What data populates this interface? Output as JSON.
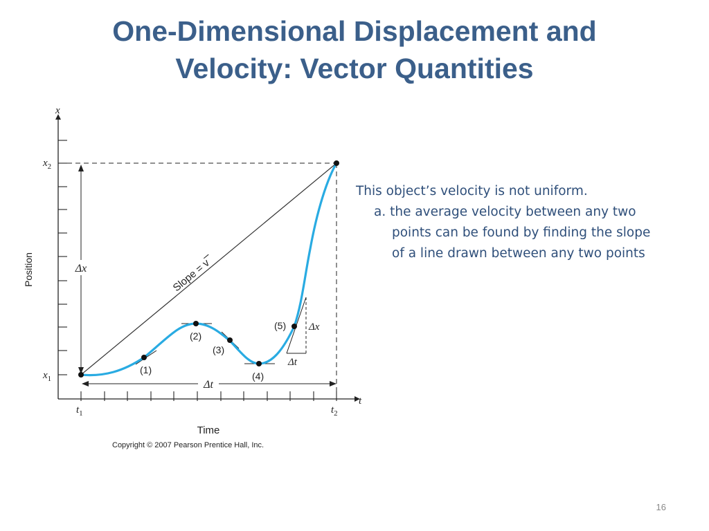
{
  "slide": {
    "title_line1": "One-Dimensional Displacement and",
    "title_line2": "Velocity: Vector Quantities",
    "page_number": "16"
  },
  "notes": {
    "line1": "This object’s velocity is not uniform.",
    "line2": "a. the average velocity between any two",
    "line3": "points can be found by finding the slope",
    "line4": "of a line drawn between any two points"
  },
  "figure": {
    "y_axis_var": "x",
    "x_axis_var": "t",
    "y_axis_label": "Position",
    "x_axis_label": "Time",
    "x2_label": "x",
    "x2_sub": "2",
    "x1_label": "x",
    "x1_sub": "1",
    "t1_label": "t",
    "t1_sub": "1",
    "t2_label": "t",
    "t2_sub": "2",
    "delta_x": "Δx",
    "delta_t": "Δt",
    "slope_text": "Slope = v",
    "point_labels": [
      "(1)",
      "(2)",
      "(3)",
      "(4)",
      "(5)"
    ],
    "small_delta_x": "Δx",
    "small_delta_t": "Δt",
    "copyright": "Copyright © 2007 Pearson Prentice Hall, Inc.",
    "curve_color": "#29abe2"
  }
}
